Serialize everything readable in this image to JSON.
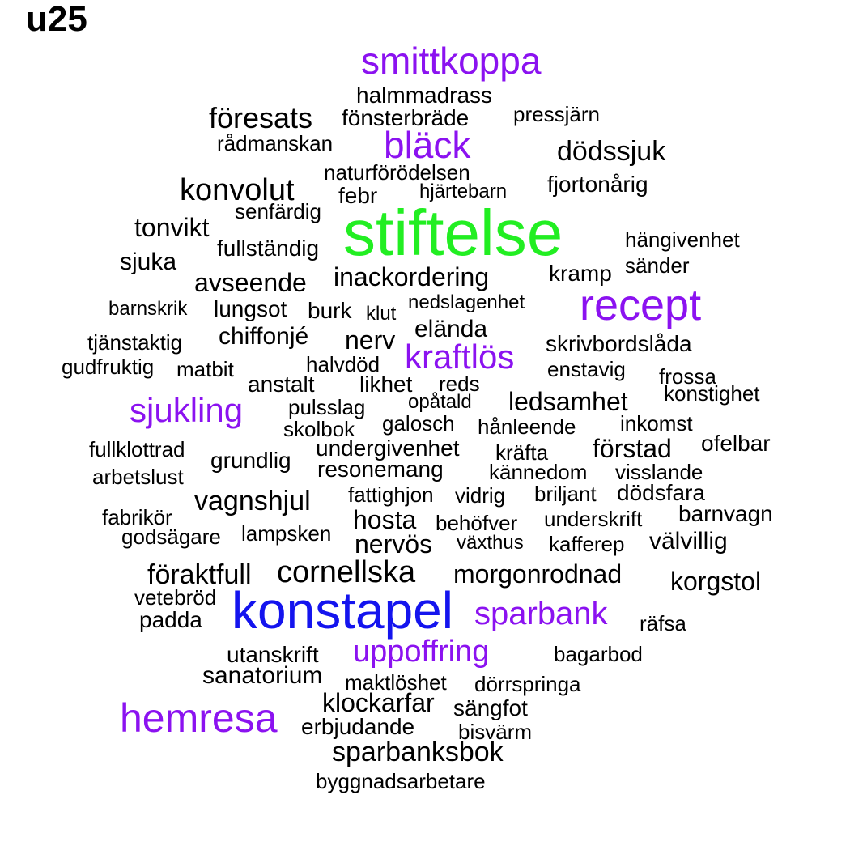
{
  "title": "u25",
  "colors": {
    "black": "#000000",
    "purple": "#8b12f0",
    "blue": "#1414ee",
    "green": "#22ee22"
  },
  "words": [
    {
      "text": "smittkoppa",
      "color": "purple"
    },
    {
      "text": "halmmadrass",
      "color": "black"
    },
    {
      "text": "föresats",
      "color": "black"
    },
    {
      "text": "fönsterbräde",
      "color": "black"
    },
    {
      "text": "pressjärn",
      "color": "black"
    },
    {
      "text": "rådmanskan",
      "color": "black"
    },
    {
      "text": "bläck",
      "color": "purple"
    },
    {
      "text": "dödssjuk",
      "color": "black"
    },
    {
      "text": "naturförödelsen",
      "color": "black"
    },
    {
      "text": "konvolut",
      "color": "black"
    },
    {
      "text": "febr",
      "color": "black"
    },
    {
      "text": "hjärtebarn",
      "color": "black"
    },
    {
      "text": "fjortonårig",
      "color": "black"
    },
    {
      "text": "senfärdig",
      "color": "black"
    },
    {
      "text": "stiftelse",
      "color": "green"
    },
    {
      "text": "tonvikt",
      "color": "black"
    },
    {
      "text": "hängivenhet",
      "color": "black"
    },
    {
      "text": "fullständig",
      "color": "black"
    },
    {
      "text": "sjuka",
      "color": "black"
    },
    {
      "text": "sänder",
      "color": "black"
    },
    {
      "text": "avseende",
      "color": "black"
    },
    {
      "text": "inackordering",
      "color": "black"
    },
    {
      "text": "kramp",
      "color": "black"
    },
    {
      "text": "barnskrik",
      "color": "black"
    },
    {
      "text": "lungsot",
      "color": "black"
    },
    {
      "text": "burk",
      "color": "black"
    },
    {
      "text": "klut",
      "color": "black"
    },
    {
      "text": "nedslagenhet",
      "color": "black"
    },
    {
      "text": "recept",
      "color": "purple"
    },
    {
      "text": "tjänstaktig",
      "color": "black"
    },
    {
      "text": "chiffonjé",
      "color": "black"
    },
    {
      "text": "nerv",
      "color": "black"
    },
    {
      "text": "elända",
      "color": "black"
    },
    {
      "text": "skrivbordslåda",
      "color": "black"
    },
    {
      "text": "gudfruktig",
      "color": "black"
    },
    {
      "text": "matbit",
      "color": "black"
    },
    {
      "text": "halvdöd",
      "color": "black"
    },
    {
      "text": "kraftlös",
      "color": "purple"
    },
    {
      "text": "enstavig",
      "color": "black"
    },
    {
      "text": "frossa",
      "color": "black"
    },
    {
      "text": "anstalt",
      "color": "black"
    },
    {
      "text": "likhet",
      "color": "black"
    },
    {
      "text": "reds",
      "color": "black"
    },
    {
      "text": "konstighet",
      "color": "black"
    },
    {
      "text": "sjukling",
      "color": "purple"
    },
    {
      "text": "pulsslag",
      "color": "black"
    },
    {
      "text": "opåtald",
      "color": "black"
    },
    {
      "text": "ledsamhet",
      "color": "black"
    },
    {
      "text": "skolbok",
      "color": "black"
    },
    {
      "text": "galosch",
      "color": "black"
    },
    {
      "text": "hånleende",
      "color": "black"
    },
    {
      "text": "inkomst",
      "color": "black"
    },
    {
      "text": "fullklottrad",
      "color": "black"
    },
    {
      "text": "undergivenhet",
      "color": "black"
    },
    {
      "text": "kräfta",
      "color": "black"
    },
    {
      "text": "förstad",
      "color": "black"
    },
    {
      "text": "ofelbar",
      "color": "black"
    },
    {
      "text": "grundlig",
      "color": "black"
    },
    {
      "text": "resonemang",
      "color": "black"
    },
    {
      "text": "kännedom",
      "color": "black"
    },
    {
      "text": "visslande",
      "color": "black"
    },
    {
      "text": "arbetslust",
      "color": "black"
    },
    {
      "text": "fattighjon",
      "color": "black"
    },
    {
      "text": "vidrig",
      "color": "black"
    },
    {
      "text": "briljant",
      "color": "black"
    },
    {
      "text": "dödsfara",
      "color": "black"
    },
    {
      "text": "vagnshjul",
      "color": "black"
    },
    {
      "text": "fabrikör",
      "color": "black"
    },
    {
      "text": "hosta",
      "color": "black"
    },
    {
      "text": "behöfver",
      "color": "black"
    },
    {
      "text": "underskrift",
      "color": "black"
    },
    {
      "text": "barnvagn",
      "color": "black"
    },
    {
      "text": "godsägare",
      "color": "black"
    },
    {
      "text": "lampsken",
      "color": "black"
    },
    {
      "text": "nervös",
      "color": "black"
    },
    {
      "text": "växthus",
      "color": "black"
    },
    {
      "text": "kafferep",
      "color": "black"
    },
    {
      "text": "välvillig",
      "color": "black"
    },
    {
      "text": "föraktfull",
      "color": "black"
    },
    {
      "text": "cornellska",
      "color": "black"
    },
    {
      "text": "morgonrodnad",
      "color": "black"
    },
    {
      "text": "korgstol",
      "color": "black"
    },
    {
      "text": "vetebröd",
      "color": "black"
    },
    {
      "text": "konstapel",
      "color": "blue"
    },
    {
      "text": "sparbank",
      "color": "purple"
    },
    {
      "text": "padda",
      "color": "black"
    },
    {
      "text": "räfsa",
      "color": "black"
    },
    {
      "text": "utanskrift",
      "color": "black"
    },
    {
      "text": "uppoffring",
      "color": "purple"
    },
    {
      "text": "bagarbod",
      "color": "black"
    },
    {
      "text": "sanatorium",
      "color": "black"
    },
    {
      "text": "maktlöshet",
      "color": "black"
    },
    {
      "text": "dörrspringa",
      "color": "black"
    },
    {
      "text": "klockarfar",
      "color": "black"
    },
    {
      "text": "hemresa",
      "color": "purple"
    },
    {
      "text": "sängfot",
      "color": "black"
    },
    {
      "text": "erbjudande",
      "color": "black"
    },
    {
      "text": "bisvärm",
      "color": "black"
    },
    {
      "text": "sparbanksbok",
      "color": "black"
    },
    {
      "text": "byggnadsarbetare",
      "color": "black"
    }
  ]
}
